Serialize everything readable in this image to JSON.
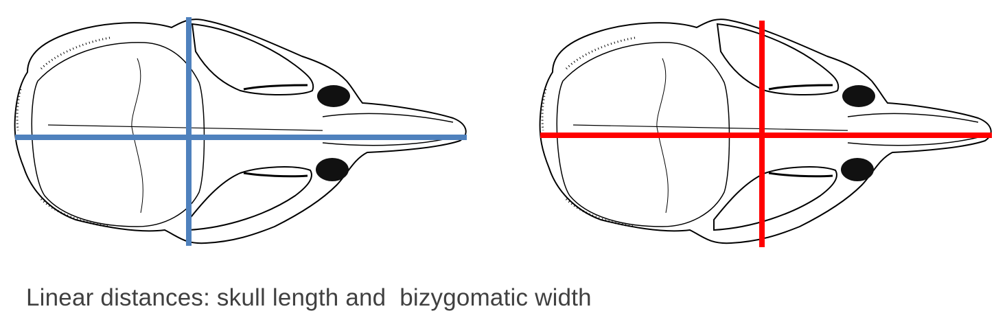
{
  "caption": "Linear distances: skull length and  bizygomatic width",
  "figure": {
    "panels": [
      {
        "name": "left-skull",
        "measure_color": "#4f81bd"
      },
      {
        "name": "right-skull",
        "measure_color": "#ff0000"
      }
    ]
  }
}
